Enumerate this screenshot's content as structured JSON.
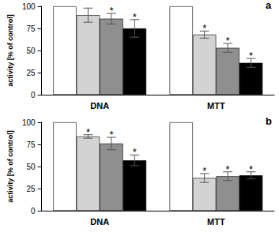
{
  "chart_data": [
    {
      "type": "bar",
      "title": "a",
      "y_label": "activity [% of control]",
      "categories": [
        "DNA",
        "MTT"
      ],
      "ylim": [
        0,
        100
      ],
      "yticks": [
        0,
        25,
        50,
        75,
        100
      ],
      "grid": false,
      "series": [
        {
          "color": "#ffffff",
          "values": [
            100,
            100
          ],
          "errors": [
            null,
            null
          ],
          "significance": [
            null,
            null
          ]
        },
        {
          "color": "#d3d3d3",
          "values": [
            90,
            68
          ],
          "errors": [
            8,
            4
          ],
          "significance": [
            null,
            "*"
          ]
        },
        {
          "color": "#8f8f8f",
          "values": [
            86,
            53
          ],
          "errors": [
            6,
            5
          ],
          "significance": [
            "*",
            "*"
          ]
        },
        {
          "color": "#000000",
          "values": [
            75,
            36
          ],
          "errors": [
            10,
            5
          ],
          "significance": [
            "*",
            "*"
          ]
        }
      ]
    },
    {
      "type": "bar",
      "title": "b",
      "y_label": "activity [% of control]",
      "categories": [
        "DNA",
        "MTT"
      ],
      "ylim": [
        0,
        100
      ],
      "yticks": [
        0,
        25,
        50,
        75,
        100
      ],
      "grid": false,
      "series": [
        {
          "color": "#ffffff",
          "values": [
            100,
            100
          ],
          "errors": [
            null,
            null
          ],
          "significance": [
            null,
            null
          ]
        },
        {
          "color": "#d3d3d3",
          "values": [
            84,
            37
          ],
          "errors": [
            2,
            5
          ],
          "significance": [
            "*",
            "*"
          ]
        },
        {
          "color": "#8f8f8f",
          "values": [
            76,
            39
          ],
          "errors": [
            7,
            5
          ],
          "significance": [
            "*",
            "*"
          ]
        },
        {
          "color": "#000000",
          "values": [
            57,
            40
          ],
          "errors": [
            6,
            4
          ],
          "significance": [
            "*",
            "*"
          ]
        }
      ]
    }
  ]
}
